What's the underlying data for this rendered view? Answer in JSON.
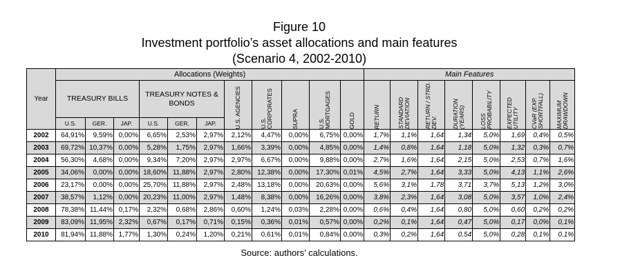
{
  "title": {
    "line1": "Figure 10",
    "line2": "Investment portfolio’s asset allocations and main features",
    "line3": "(Scenario 4, 2002-2010)"
  },
  "header": {
    "year": "Year",
    "allocations": "Allocations (Weights)",
    "main_features": "Main Features",
    "treasury_bills": "TREASURY BILLS",
    "treasury_notes": "TREASURY NOTES & BONDS",
    "us_agencies": "U.S. AGENCIES",
    "us_corporates": "U.S. CORPORATES",
    "supra": "SUPRA",
    "us_mortgages": "U.S. MORTGAGES",
    "gold": "GOLD",
    "return": "RETURN",
    "std_dev": "STANDARD DEVIATION",
    "ret_std": "RETURN / STRD. DEV.",
    "duration": "DURATION (YEARS)",
    "loss_prob": "LOSS PROBABILITY",
    "exp_utility": "EXPECTED UTILITY",
    "cvar": "CVaR (EXP. SHORTFALL)",
    "max_dd": "MAXIMUM DRAWDOWN",
    "us": "U.S.",
    "ger": "GER.",
    "jap": "JAP."
  },
  "rows": [
    {
      "year": "2002",
      "tb_us": "64,91%",
      "tb_ger": "9,59%",
      "tb_jap": "0,00%",
      "tn_us": "6,65%",
      "tn_ger": "2,53%",
      "tn_jap": "2,97%",
      "agencies": "2,12%",
      "corporates": "4,47%",
      "supra": "0,00%",
      "mortgages": "6,75%",
      "gold": "0,00%",
      "ret": "1,7%",
      "std": "1,1%",
      "retstd": "1,64",
      "dur": "1,34",
      "loss": "5,0%",
      "util": "1,69",
      "cvar": "0,4%",
      "mdd": "0,5%"
    },
    {
      "year": "2003",
      "tb_us": "69,72%",
      "tb_ger": "10,37%",
      "tb_jap": "0,00%",
      "tn_us": "5,28%",
      "tn_ger": "1,75%",
      "tn_jap": "2,97%",
      "agencies": "1,66%",
      "corporates": "3,39%",
      "supra": "0,00%",
      "mortgages": "4,85%",
      "gold": "0,00%",
      "ret": "1,4%",
      "std": "0,8%",
      "retstd": "1,64",
      "dur": "1,18",
      "loss": "5,0%",
      "util": "1,32",
      "cvar": "0,3%",
      "mdd": "0,7%"
    },
    {
      "year": "2004",
      "tb_us": "56,30%",
      "tb_ger": "4,68%",
      "tb_jap": "0,00%",
      "tn_us": "9,34%",
      "tn_ger": "7,20%",
      "tn_jap": "2,97%",
      "agencies": "2,97%",
      "corporates": "6,67%",
      "supra": "0,00%",
      "mortgages": "9,88%",
      "gold": "0,00%",
      "ret": "2,7%",
      "std": "1,6%",
      "retstd": "1,64",
      "dur": "2,15",
      "loss": "5,0%",
      "util": "2,53",
      "cvar": "0,7%",
      "mdd": "1,6%"
    },
    {
      "year": "2005",
      "tb_us": "34,06%",
      "tb_ger": "0,00%",
      "tb_jap": "0,00%",
      "tn_us": "18,60%",
      "tn_ger": "11,88%",
      "tn_jap": "2,97%",
      "agencies": "2,80%",
      "corporates": "12,38%",
      "supra": "0,00%",
      "mortgages": "17,30%",
      "gold": "0,01%",
      "ret": "4,5%",
      "std": "2,7%",
      "retstd": "1,64",
      "dur": "3,33",
      "loss": "5,0%",
      "util": "4,13",
      "cvar": "1,1%",
      "mdd": "2,6%"
    },
    {
      "year": "2006",
      "tb_us": "23,17%",
      "tb_ger": "0,00%",
      "tb_jap": "0,00%",
      "tn_us": "25,70%",
      "tn_ger": "11,88%",
      "tn_jap": "2,97%",
      "agencies": "2,48%",
      "corporates": "13,18%",
      "supra": "0,00%",
      "mortgages": "20,63%",
      "gold": "0,00%",
      "ret": "5,6%",
      "std": "3,1%",
      "retstd": "1,78",
      "dur": "3,71",
      "loss": "3,7%",
      "util": "5,13",
      "cvar": "1,2%",
      "mdd": "3,0%"
    },
    {
      "year": "2007",
      "tb_us": "38,57%",
      "tb_ger": "1,12%",
      "tb_jap": "0,00%",
      "tn_us": "20,23%",
      "tn_ger": "11,00%",
      "tn_jap": "2,97%",
      "agencies": "1,48%",
      "corporates": "8,38%",
      "supra": "0,00%",
      "mortgages": "16,26%",
      "gold": "0,00%",
      "ret": "3,8%",
      "std": "2,3%",
      "retstd": "1,64",
      "dur": "3,08",
      "loss": "5,0%",
      "util": "3,57",
      "cvar": "1,0%",
      "mdd": "2,4%"
    },
    {
      "year": "2008",
      "tb_us": "78,38%",
      "tb_ger": "11,44%",
      "tb_jap": "0,17%",
      "tn_us": "2,32%",
      "tn_ger": "0,68%",
      "tn_jap": "2,86%",
      "agencies": "0,60%",
      "corporates": "1,24%",
      "supra": "0,03%",
      "mortgages": "2,28%",
      "gold": "0,00%",
      "ret": "0,6%",
      "std": "0,4%",
      "retstd": "1,64",
      "dur": "0,80",
      "loss": "5,0%",
      "util": "0,60",
      "cvar": "0,2%",
      "mdd": "0,2%"
    },
    {
      "year": "2009",
      "tb_us": "83,09%",
      "tb_ger": "11,95%",
      "tb_jap": "2,32%",
      "tn_us": "0,67%",
      "tn_ger": "0,17%",
      "tn_jap": "0,71%",
      "agencies": "0,15%",
      "corporates": "0,36%",
      "supra": "0,01%",
      "mortgages": "0,57%",
      "gold": "0,00%",
      "ret": "0,2%",
      "std": "0,1%",
      "retstd": "1,64",
      "dur": "0,47",
      "loss": "5,0%",
      "util": "0,17",
      "cvar": "0,0%",
      "mdd": "0,1%"
    },
    {
      "year": "2010",
      "tb_us": "81,94%",
      "tb_ger": "11,88%",
      "tb_jap": "1,77%",
      "tn_us": "1,30%",
      "tn_ger": "0,24%",
      "tn_jap": "1,20%",
      "agencies": "0,21%",
      "corporates": "0,61%",
      "supra": "0,01%",
      "mortgages": "0,84%",
      "gold": "0,00%",
      "ret": "0,3%",
      "std": "0,2%",
      "retstd": "1,64",
      "dur": "0,54",
      "loss": "5,0%",
      "util": "0,28",
      "cvar": "0,1%",
      "mdd": "0,1%"
    }
  ],
  "source": "Source: authors’ calculations."
}
